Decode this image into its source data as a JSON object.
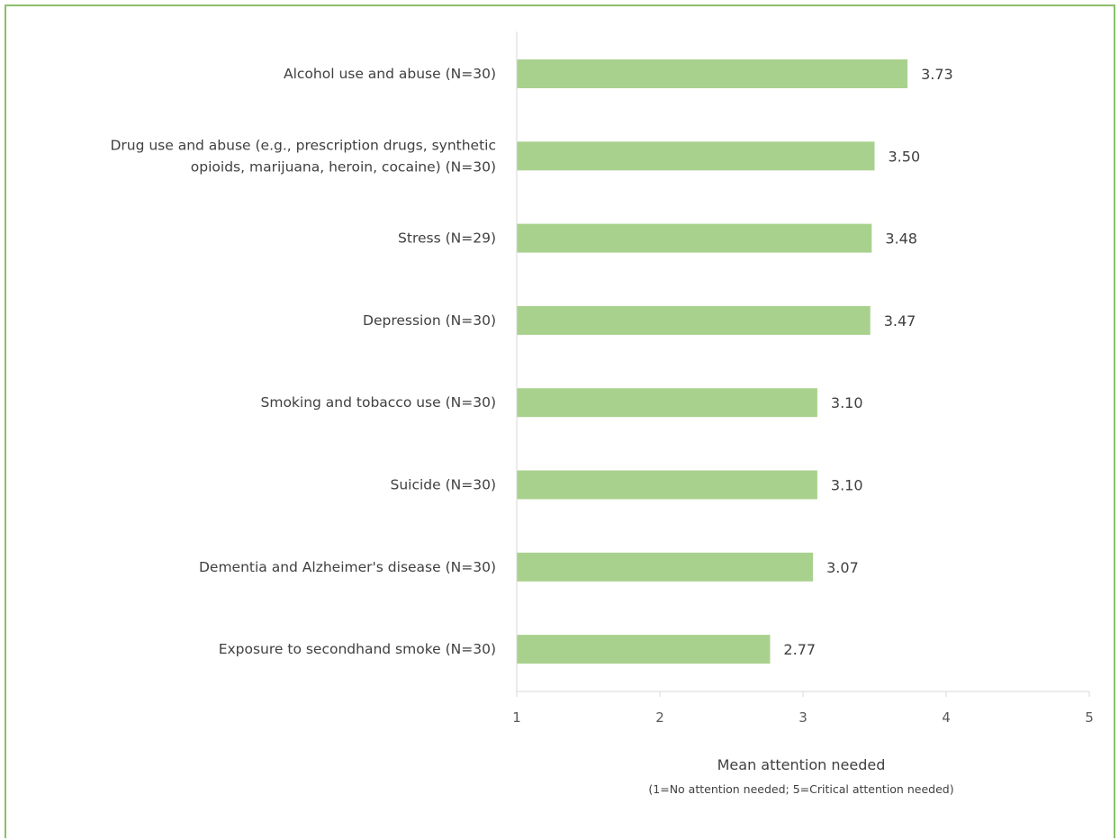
{
  "chart_data": {
    "type": "bar",
    "orientation": "horizontal",
    "categories": [
      [
        "Alcohol use and abuse (N=30)"
      ],
      [
        "Drug use and abuse (e.g., prescription drugs, synthetic",
        "opioids, marijuana, heroin, cocaine) (N=30)"
      ],
      [
        "Stress (N=29)"
      ],
      [
        "Depression (N=30)"
      ],
      [
        "Smoking and tobacco use (N=30)"
      ],
      [
        "Suicide (N=30)"
      ],
      [
        "Dementia and Alzheimer's disease (N=30)"
      ],
      [
        "Exposure to secondhand smoke (N=30)"
      ]
    ],
    "values": [
      3.73,
      3.5,
      3.48,
      3.47,
      3.1,
      3.1,
      3.07,
      2.77
    ],
    "value_labels": [
      "3.73",
      "3.50",
      "3.48",
      "3.47",
      "3.10",
      "3.10",
      "3.07",
      "2.77"
    ],
    "xlim": [
      1,
      5
    ],
    "xticks": [
      1,
      2,
      3,
      4,
      5
    ],
    "xlabel": "Mean attention needed",
    "xlabel_note": "(1=No attention needed; 5=Critical attention needed)",
    "grid": false,
    "bar_color": "#a9d18e",
    "frame_color": "#8cc06a"
  }
}
